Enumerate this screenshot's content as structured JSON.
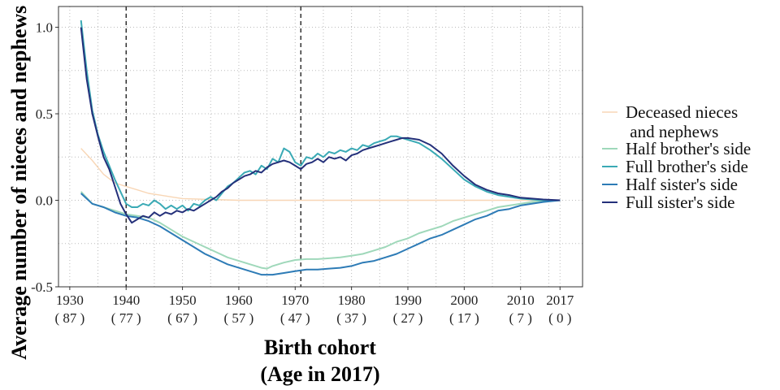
{
  "chart_data": {
    "type": "line",
    "xlabel": "Birth cohort",
    "xlabel_sub": "(Age in 2017)",
    "ylabel": "Average number of nieces and nephews (SC",
    "xlim": [
      1928,
      2021
    ],
    "ylim": [
      -0.5,
      1.12
    ],
    "grid": true,
    "legend_position": "right",
    "x_ticks": [
      {
        "value": 1930,
        "label": "1930",
        "sub": "( 87 )"
      },
      {
        "value": 1940,
        "label": "1940",
        "sub": "( 77 )"
      },
      {
        "value": 1950,
        "label": "1950",
        "sub": "( 67 )"
      },
      {
        "value": 1960,
        "label": "1960",
        "sub": "( 57 )"
      },
      {
        "value": 1970,
        "label": "1970",
        "sub": "( 47 )"
      },
      {
        "value": 1980,
        "label": "1980",
        "sub": "( 37 )"
      },
      {
        "value": 1990,
        "label": "1990",
        "sub": "( 27 )"
      },
      {
        "value": 2000,
        "label": "2000",
        "sub": "( 17 )"
      },
      {
        "value": 2010,
        "label": "2010",
        "sub": "( 7 )"
      },
      {
        "value": 2017,
        "label": "2017",
        "sub": "( 0 )"
      }
    ],
    "y_ticks": [
      {
        "value": 1.0,
        "label": "1.0"
      },
      {
        "value": 0.5,
        "label": "0.5"
      },
      {
        "value": 0.0,
        "label": "0.0"
      },
      {
        "value": -0.5,
        "label": "-0.5"
      }
    ],
    "vlines": [
      1940,
      1971
    ],
    "series": [
      {
        "name": "Deceased nieces and nephews",
        "name_lines": [
          "Deceased nieces",
          " and nephews"
        ],
        "color": "#f8d6b5",
        "points": [
          [
            1932,
            0.3
          ],
          [
            1934,
            0.23
          ],
          [
            1936,
            0.15
          ],
          [
            1938,
            0.1
          ],
          [
            1940,
            0.08
          ],
          [
            1942,
            0.06
          ],
          [
            1944,
            0.04
          ],
          [
            1946,
            0.03
          ],
          [
            1948,
            0.02
          ],
          [
            1950,
            0.01
          ],
          [
            1955,
            0.005
          ],
          [
            1960,
            0.0
          ],
          [
            1970,
            0.0
          ],
          [
            1980,
            0.0
          ],
          [
            1990,
            0.0
          ],
          [
            2000,
            0.0
          ],
          [
            2010,
            0.0
          ],
          [
            2017,
            0.0
          ]
        ]
      },
      {
        "name": "Half brother's side",
        "name_lines": [
          "Half brother's side"
        ],
        "color": "#9fd8ba",
        "points": [
          [
            1932,
            0.05
          ],
          [
            1934,
            -0.02
          ],
          [
            1936,
            -0.04
          ],
          [
            1938,
            -0.06
          ],
          [
            1940,
            -0.08
          ],
          [
            1942,
            -0.09
          ],
          [
            1944,
            -0.1
          ],
          [
            1946,
            -0.13
          ],
          [
            1948,
            -0.17
          ],
          [
            1950,
            -0.21
          ],
          [
            1952,
            -0.24
          ],
          [
            1954,
            -0.27
          ],
          [
            1956,
            -0.3
          ],
          [
            1958,
            -0.33
          ],
          [
            1960,
            -0.35
          ],
          [
            1962,
            -0.37
          ],
          [
            1964,
            -0.39
          ],
          [
            1965,
            -0.395
          ],
          [
            1966,
            -0.38
          ],
          [
            1968,
            -0.36
          ],
          [
            1970,
            -0.345
          ],
          [
            1972,
            -0.34
          ],
          [
            1974,
            -0.34
          ],
          [
            1976,
            -0.335
          ],
          [
            1978,
            -0.33
          ],
          [
            1980,
            -0.32
          ],
          [
            1982,
            -0.31
          ],
          [
            1984,
            -0.29
          ],
          [
            1986,
            -0.27
          ],
          [
            1988,
            -0.24
          ],
          [
            1990,
            -0.22
          ],
          [
            1992,
            -0.19
          ],
          [
            1994,
            -0.17
          ],
          [
            1996,
            -0.15
          ],
          [
            1998,
            -0.12
          ],
          [
            2000,
            -0.1
          ],
          [
            2002,
            -0.08
          ],
          [
            2004,
            -0.06
          ],
          [
            2006,
            -0.04
          ],
          [
            2008,
            -0.03
          ],
          [
            2010,
            -0.02
          ],
          [
            2012,
            -0.01
          ],
          [
            2014,
            -0.005
          ],
          [
            2017,
            0.0
          ]
        ]
      },
      {
        "name": "Full brother's side",
        "name_lines": [
          "Full brother's side"
        ],
        "color": "#3aaab5",
        "points": [
          [
            1932,
            1.04
          ],
          [
            1933,
            0.75
          ],
          [
            1934,
            0.52
          ],
          [
            1935,
            0.38
          ],
          [
            1936,
            0.28
          ],
          [
            1937,
            0.2
          ],
          [
            1938,
            0.12
          ],
          [
            1939,
            0.05
          ],
          [
            1940,
            -0.02
          ],
          [
            1941,
            -0.04
          ],
          [
            1942,
            -0.04
          ],
          [
            1943,
            -0.02
          ],
          [
            1944,
            -0.03
          ],
          [
            1945,
            0.0
          ],
          [
            1946,
            -0.02
          ],
          [
            1947,
            -0.05
          ],
          [
            1948,
            -0.03
          ],
          [
            1949,
            -0.05
          ],
          [
            1950,
            -0.03
          ],
          [
            1951,
            -0.06
          ],
          [
            1952,
            -0.02
          ],
          [
            1953,
            -0.03
          ],
          [
            1954,
            0.0
          ],
          [
            1955,
            0.02
          ],
          [
            1956,
            0.0
          ],
          [
            1957,
            0.04
          ],
          [
            1958,
            0.08
          ],
          [
            1959,
            0.1
          ],
          [
            1960,
            0.13
          ],
          [
            1961,
            0.16
          ],
          [
            1962,
            0.17
          ],
          [
            1963,
            0.15
          ],
          [
            1964,
            0.2
          ],
          [
            1965,
            0.18
          ],
          [
            1966,
            0.24
          ],
          [
            1967,
            0.22
          ],
          [
            1968,
            0.3
          ],
          [
            1969,
            0.28
          ],
          [
            1970,
            0.22
          ],
          [
            1971,
            0.2
          ],
          [
            1972,
            0.25
          ],
          [
            1973,
            0.24
          ],
          [
            1974,
            0.27
          ],
          [
            1975,
            0.25
          ],
          [
            1976,
            0.28
          ],
          [
            1977,
            0.27
          ],
          [
            1978,
            0.29
          ],
          [
            1979,
            0.28
          ],
          [
            1980,
            0.3
          ],
          [
            1981,
            0.29
          ],
          [
            1982,
            0.32
          ],
          [
            1983,
            0.31
          ],
          [
            1984,
            0.33
          ],
          [
            1985,
            0.34
          ],
          [
            1986,
            0.35
          ],
          [
            1987,
            0.37
          ],
          [
            1988,
            0.37
          ],
          [
            1989,
            0.36
          ],
          [
            1990,
            0.35
          ],
          [
            1992,
            0.33
          ],
          [
            1994,
            0.29
          ],
          [
            1996,
            0.24
          ],
          [
            1998,
            0.18
          ],
          [
            2000,
            0.12
          ],
          [
            2002,
            0.08
          ],
          [
            2004,
            0.05
          ],
          [
            2006,
            0.03
          ],
          [
            2008,
            0.02
          ],
          [
            2010,
            0.01
          ],
          [
            2012,
            0.005
          ],
          [
            2014,
            0.0
          ],
          [
            2017,
            0.0
          ]
        ]
      },
      {
        "name": "Half sister's side",
        "name_lines": [
          "Half sister's side"
        ],
        "color": "#2d7bb6",
        "points": [
          [
            1932,
            0.04
          ],
          [
            1934,
            -0.02
          ],
          [
            1936,
            -0.04
          ],
          [
            1938,
            -0.07
          ],
          [
            1940,
            -0.09
          ],
          [
            1942,
            -0.1
          ],
          [
            1944,
            -0.12
          ],
          [
            1946,
            -0.15
          ],
          [
            1948,
            -0.19
          ],
          [
            1950,
            -0.23
          ],
          [
            1952,
            -0.27
          ],
          [
            1954,
            -0.31
          ],
          [
            1956,
            -0.34
          ],
          [
            1958,
            -0.37
          ],
          [
            1960,
            -0.39
          ],
          [
            1962,
            -0.41
          ],
          [
            1964,
            -0.43
          ],
          [
            1966,
            -0.43
          ],
          [
            1968,
            -0.42
          ],
          [
            1970,
            -0.41
          ],
          [
            1972,
            -0.4
          ],
          [
            1974,
            -0.4
          ],
          [
            1976,
            -0.395
          ],
          [
            1978,
            -0.39
          ],
          [
            1980,
            -0.38
          ],
          [
            1982,
            -0.36
          ],
          [
            1984,
            -0.35
          ],
          [
            1986,
            -0.33
          ],
          [
            1988,
            -0.31
          ],
          [
            1990,
            -0.28
          ],
          [
            1992,
            -0.25
          ],
          [
            1994,
            -0.22
          ],
          [
            1996,
            -0.2
          ],
          [
            1998,
            -0.17
          ],
          [
            2000,
            -0.14
          ],
          [
            2002,
            -0.11
          ],
          [
            2004,
            -0.09
          ],
          [
            2006,
            -0.06
          ],
          [
            2008,
            -0.05
          ],
          [
            2010,
            -0.03
          ],
          [
            2012,
            -0.02
          ],
          [
            2014,
            -0.01
          ],
          [
            2017,
            0.0
          ]
        ]
      },
      {
        "name": "Full sister's side",
        "name_lines": [
          "Full sister's side"
        ],
        "color": "#24307a",
        "points": [
          [
            1932,
            1.0
          ],
          [
            1933,
            0.7
          ],
          [
            1934,
            0.5
          ],
          [
            1935,
            0.37
          ],
          [
            1936,
            0.25
          ],
          [
            1937,
            0.18
          ],
          [
            1938,
            0.08
          ],
          [
            1939,
            -0.02
          ],
          [
            1940,
            -0.08
          ],
          [
            1941,
            -0.13
          ],
          [
            1942,
            -0.11
          ],
          [
            1943,
            -0.09
          ],
          [
            1944,
            -0.1
          ],
          [
            1945,
            -0.07
          ],
          [
            1946,
            -0.09
          ],
          [
            1947,
            -0.07
          ],
          [
            1948,
            -0.08
          ],
          [
            1949,
            -0.06
          ],
          [
            1950,
            -0.07
          ],
          [
            1951,
            -0.05
          ],
          [
            1952,
            -0.06
          ],
          [
            1953,
            -0.04
          ],
          [
            1954,
            -0.02
          ],
          [
            1955,
            0.0
          ],
          [
            1956,
            0.02
          ],
          [
            1957,
            0.05
          ],
          [
            1958,
            0.07
          ],
          [
            1959,
            0.1
          ],
          [
            1960,
            0.12
          ],
          [
            1961,
            0.14
          ],
          [
            1962,
            0.15
          ],
          [
            1963,
            0.17
          ],
          [
            1964,
            0.16
          ],
          [
            1965,
            0.19
          ],
          [
            1966,
            0.21
          ],
          [
            1967,
            0.22
          ],
          [
            1968,
            0.23
          ],
          [
            1969,
            0.22
          ],
          [
            1970,
            0.2
          ],
          [
            1971,
            0.18
          ],
          [
            1972,
            0.21
          ],
          [
            1973,
            0.22
          ],
          [
            1974,
            0.24
          ],
          [
            1975,
            0.22
          ],
          [
            1976,
            0.25
          ],
          [
            1977,
            0.24
          ],
          [
            1978,
            0.25
          ],
          [
            1979,
            0.23
          ],
          [
            1980,
            0.26
          ],
          [
            1981,
            0.27
          ],
          [
            1982,
            0.29
          ],
          [
            1983,
            0.3
          ],
          [
            1984,
            0.31
          ],
          [
            1985,
            0.32
          ],
          [
            1986,
            0.33
          ],
          [
            1987,
            0.34
          ],
          [
            1988,
            0.35
          ],
          [
            1989,
            0.36
          ],
          [
            1990,
            0.36
          ],
          [
            1992,
            0.35
          ],
          [
            1994,
            0.32
          ],
          [
            1996,
            0.27
          ],
          [
            1998,
            0.2
          ],
          [
            2000,
            0.14
          ],
          [
            2002,
            0.09
          ],
          [
            2004,
            0.06
          ],
          [
            2006,
            0.04
          ],
          [
            2008,
            0.03
          ],
          [
            2010,
            0.015
          ],
          [
            2012,
            0.01
          ],
          [
            2014,
            0.005
          ],
          [
            2017,
            0.0
          ]
        ]
      }
    ]
  }
}
